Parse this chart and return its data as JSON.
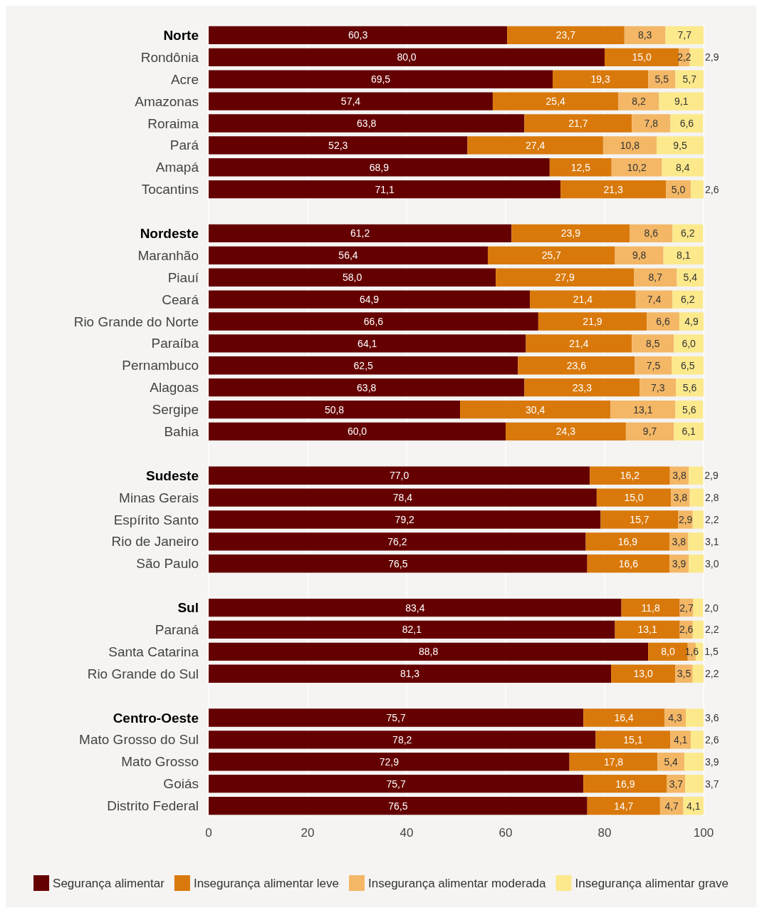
{
  "chart_data": {
    "type": "bar",
    "orientation": "horizontal",
    "stacked": true,
    "grid": "x",
    "legend": "bottom",
    "xlim": [
      0,
      100
    ],
    "xticks": [
      0,
      20,
      40,
      60,
      80,
      100
    ],
    "categories": [
      "Norte",
      "Rondônia",
      "Acre",
      "Amazonas",
      "Roraima",
      "Pará",
      "Amapá",
      "Tocantins",
      null,
      "Nordeste",
      "Maranhão",
      "Piauí",
      "Ceará",
      "Rio Grande do Norte",
      "Paraíba",
      "Pernambuco",
      "Alagoas",
      "Sergipe",
      "Bahia",
      null,
      "Sudeste",
      "Minas Gerais",
      "Espírito Santo",
      "Rio de Janeiro",
      "São Paulo",
      null,
      "Sul",
      "Paraná",
      "Santa Catarina",
      "Rio Grande do Sul",
      null,
      "Centro-Oeste",
      "Mato Grosso do Sul",
      "Mato Grosso",
      "Goiás",
      "Distrito Federal"
    ],
    "series": [
      {
        "name": "Segurança alimentar",
        "color": "#650000",
        "values": [
          60.3,
          80.0,
          69.5,
          57.4,
          63.8,
          52.3,
          68.9,
          71.1,
          null,
          61.2,
          56.4,
          58.0,
          64.9,
          66.6,
          64.1,
          62.5,
          63.8,
          50.8,
          60.0,
          null,
          77.0,
          78.4,
          79.2,
          76.2,
          76.5,
          null,
          83.4,
          82.1,
          88.8,
          81.3,
          null,
          75.7,
          78.2,
          72.9,
          75.7,
          76.5
        ],
        "value_labels": [
          "60,3",
          "80,0",
          "69,5",
          "57,4",
          "63,8",
          "52,3",
          "68,9",
          "71,1",
          null,
          "61,2",
          "56,4",
          "58,0",
          "64,9",
          "66,6",
          "64,1",
          "62,5",
          "63,8",
          "50,8",
          "60,0",
          null,
          "77,0",
          "78,4",
          "79,2",
          "76,2",
          "76,5",
          null,
          "83,4",
          "82,1",
          "88,8",
          "81,3",
          null,
          "75,7",
          "78,2",
          "72,9",
          "75,7",
          "76,5"
        ]
      },
      {
        "name": "Insegurança alimentar leve",
        "color": "#d9790b",
        "values": [
          23.7,
          15.0,
          19.3,
          25.4,
          21.7,
          27.4,
          12.5,
          21.3,
          null,
          23.9,
          25.7,
          27.9,
          21.4,
          21.9,
          21.4,
          23.6,
          23.3,
          30.4,
          24.3,
          null,
          16.2,
          15.0,
          15.7,
          16.9,
          16.6,
          null,
          11.8,
          13.1,
          8.0,
          13.0,
          null,
          16.4,
          15.1,
          17.8,
          16.9,
          14.7
        ],
        "value_labels": [
          "23,7",
          "15,0",
          "19,3",
          "25,4",
          "21,7",
          "27,4",
          "12,5",
          "21,3",
          null,
          "23,9",
          "25,7",
          "27,9",
          "21,4",
          "21,9",
          "21,4",
          "23,6",
          "23,3",
          "30,4",
          "24,3",
          null,
          "16,2",
          "15,0",
          "15,7",
          "16,9",
          "16,6",
          null,
          "11,8",
          "13,1",
          "8,0",
          "13,0",
          null,
          "16,4",
          "15,1",
          "17,8",
          "16,9",
          "14,7"
        ]
      },
      {
        "name": "Insegurança alimentar moderada",
        "color": "#f3b766",
        "values": [
          8.3,
          2.2,
          5.5,
          8.2,
          7.8,
          10.8,
          10.2,
          5.0,
          null,
          8.6,
          9.8,
          8.7,
          7.4,
          6.6,
          8.5,
          7.5,
          7.3,
          13.1,
          9.7,
          null,
          3.8,
          3.8,
          2.9,
          3.8,
          3.9,
          null,
          2.7,
          2.6,
          1.6,
          3.5,
          null,
          4.3,
          4.1,
          5.4,
          3.7,
          4.7
        ],
        "value_labels": [
          "8,3",
          "2,2",
          "5,5",
          "8,2",
          "7,8",
          "10,8",
          "10,2",
          "5,0",
          null,
          "8,6",
          "9,8",
          "8,7",
          "7,4",
          "6,6",
          "8,5",
          "7,5",
          "7,3",
          "13,1",
          "9,7",
          null,
          "3,8",
          "3,8",
          "2,9",
          "3,8",
          "3,9",
          null,
          "2,7",
          "2,6",
          "1,6",
          "3,5",
          null,
          "4,3",
          "4,1",
          "5,4",
          "3,7",
          "4,7"
        ]
      },
      {
        "name": "Insegurança alimentar grave",
        "color": "#fce98c",
        "values": [
          7.7,
          2.9,
          5.7,
          9.1,
          6.6,
          9.5,
          8.4,
          2.6,
          null,
          6.2,
          8.1,
          5.4,
          6.2,
          4.9,
          6.0,
          6.5,
          5.6,
          5.6,
          6.1,
          null,
          2.9,
          2.8,
          2.2,
          3.1,
          3.0,
          null,
          2.0,
          2.2,
          1.5,
          2.2,
          null,
          3.6,
          2.6,
          3.9,
          3.7,
          4.1
        ],
        "value_labels": [
          "7,7",
          "2,9",
          "5,7",
          "9,1",
          "6,6",
          "9,5",
          "8,4",
          "2,6",
          null,
          "6,2",
          "8,1",
          "5,4",
          "6,2",
          "4,9",
          "6,0",
          "6,5",
          "5,6",
          "5,6",
          "6,1",
          null,
          "2,9",
          "2,8",
          "2,2",
          "3,1",
          "3,0",
          null,
          "2,0",
          "2,2",
          "1,5",
          "2,2",
          null,
          "3,6",
          "2,6",
          "3,9",
          "3,7",
          "4,1"
        ]
      }
    ]
  }
}
